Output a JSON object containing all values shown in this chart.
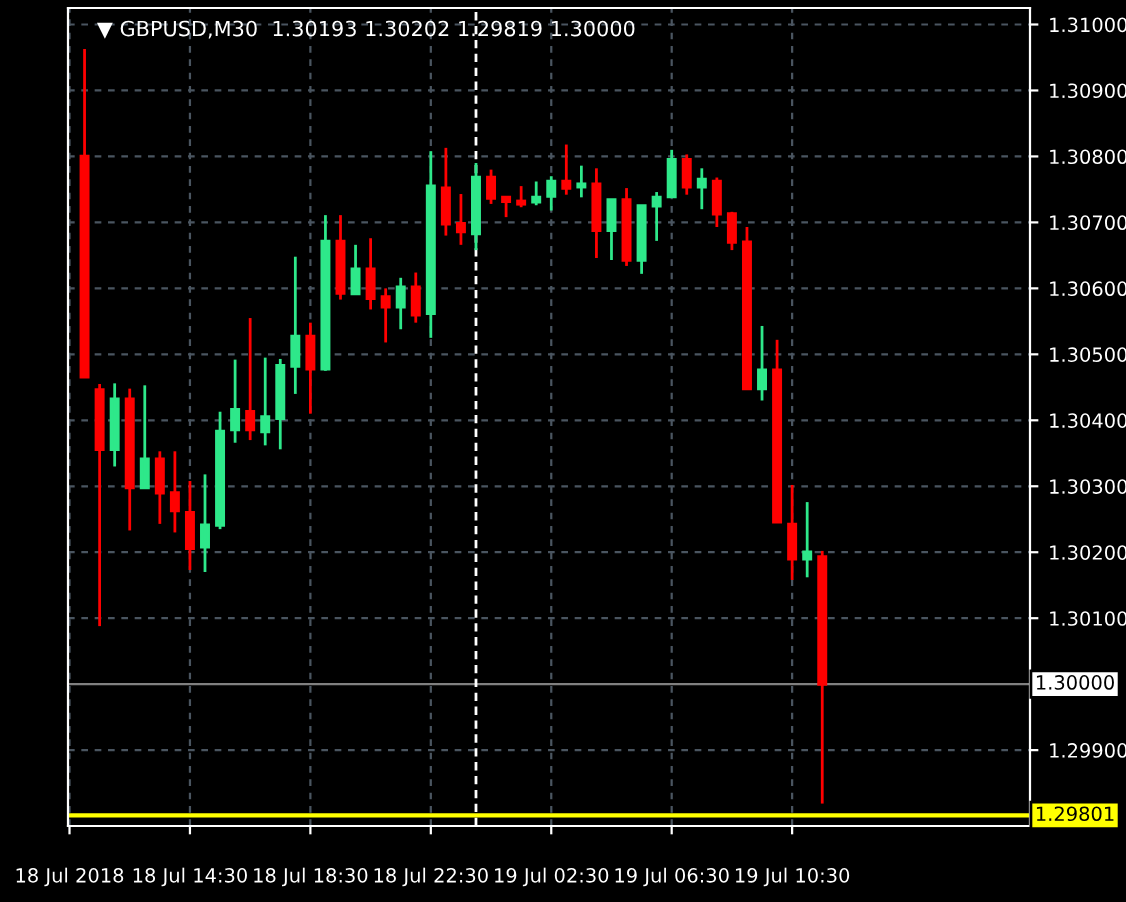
{
  "chart_data": {
    "type": "candlestick",
    "title": "▼ GBPUSD,M30  1.30193 1.30202 1.29819 1.30000",
    "x": [
      "2018-07-18T11:00",
      "2018-07-18T11:30",
      "2018-07-18T12:00",
      "2018-07-18T12:30",
      "2018-07-18T13:00",
      "2018-07-18T13:30",
      "2018-07-18T14:00",
      "2018-07-18T14:30",
      "2018-07-18T15:00",
      "2018-07-18T15:30",
      "2018-07-18T16:00",
      "2018-07-18T16:30",
      "2018-07-18T17:00",
      "2018-07-18T17:30",
      "2018-07-18T18:00",
      "2018-07-18T18:30",
      "2018-07-18T19:00",
      "2018-07-18T19:30",
      "2018-07-18T20:00",
      "2018-07-18T20:30",
      "2018-07-18T21:00",
      "2018-07-18T21:30",
      "2018-07-18T22:00",
      "2018-07-18T22:30",
      "2018-07-18T23:00",
      "2018-07-18T23:30",
      "2018-07-19T00:00",
      "2018-07-19T00:30",
      "2018-07-19T01:00",
      "2018-07-19T01:30",
      "2018-07-19T02:00",
      "2018-07-19T02:30",
      "2018-07-19T03:00",
      "2018-07-19T03:30",
      "2018-07-19T04:00",
      "2018-07-19T04:30",
      "2018-07-19T05:00",
      "2018-07-19T05:30",
      "2018-07-19T06:00",
      "2018-07-19T06:30",
      "2018-07-19T07:00",
      "2018-07-19T07:30",
      "2018-07-19T08:00",
      "2018-07-19T08:30",
      "2018-07-19T09:00",
      "2018-07-19T09:30",
      "2018-07-19T10:00",
      "2018-07-19T10:30",
      "2018-07-19T11:00",
      "2018-07-19T11:30"
    ],
    "ohlc": [
      [
        1.308,
        1.30963,
        1.30466,
        1.30466
      ],
      [
        1.30446,
        1.30455,
        1.30088,
        1.30356
      ],
      [
        1.30356,
        1.30456,
        1.3033,
        1.30432
      ],
      [
        1.30432,
        1.30448,
        1.30233,
        1.30298
      ],
      [
        1.30298,
        1.30453,
        1.30296,
        1.30341
      ],
      [
        1.30341,
        1.30353,
        1.30243,
        1.3029
      ],
      [
        1.3029,
        1.30353,
        1.3023,
        1.30263
      ],
      [
        1.3026,
        1.30308,
        1.30173,
        1.30206
      ],
      [
        1.30208,
        1.30318,
        1.3017,
        1.30241
      ],
      [
        1.30241,
        1.30413,
        1.30235,
        1.30383
      ],
      [
        1.30386,
        1.30492,
        1.30366,
        1.30416
      ],
      [
        1.30413,
        1.30555,
        1.3037,
        1.30386
      ],
      [
        1.30383,
        1.30495,
        1.30362,
        1.30405
      ],
      [
        1.30403,
        1.30493,
        1.30356,
        1.30483
      ],
      [
        1.30482,
        1.30648,
        1.3044,
        1.30527
      ],
      [
        1.30527,
        1.30548,
        1.3041,
        1.30478
      ],
      [
        1.30478,
        1.30711,
        1.30475,
        1.30671
      ],
      [
        1.30671,
        1.30711,
        1.30583,
        1.30593
      ],
      [
        1.30592,
        1.30666,
        1.3059,
        1.30629
      ],
      [
        1.30629,
        1.30676,
        1.30568,
        1.30585
      ],
      [
        1.30587,
        1.306,
        1.30518,
        1.30572
      ],
      [
        1.30572,
        1.30616,
        1.30538,
        1.30602
      ],
      [
        1.30602,
        1.30624,
        1.30548,
        1.3056
      ],
      [
        1.30562,
        1.30808,
        1.30525,
        1.30755
      ],
      [
        1.30752,
        1.30813,
        1.3068,
        1.30698
      ],
      [
        1.30698,
        1.30743,
        1.30666,
        1.30686
      ],
      [
        1.30683,
        1.3079,
        1.30658,
        1.30768
      ],
      [
        1.30768,
        1.3078,
        1.30728,
        1.30737
      ],
      [
        1.30738,
        1.30738,
        1.30708,
        1.30732
      ],
      [
        1.30732,
        1.30755,
        1.30723,
        1.30728
      ],
      [
        1.30731,
        1.30762,
        1.30726,
        1.30738
      ],
      [
        1.3074,
        1.3077,
        1.30718,
        1.30762
      ],
      [
        1.30762,
        1.30818,
        1.30742,
        1.30752
      ],
      [
        1.30754,
        1.30786,
        1.30738,
        1.30758
      ],
      [
        1.30758,
        1.30782,
        1.30646,
        1.30688
      ],
      [
        1.30688,
        1.30734,
        1.30643,
        1.30734
      ],
      [
        1.30734,
        1.30752,
        1.30634,
        1.30643
      ],
      [
        1.30643,
        1.30725,
        1.30622,
        1.30725
      ],
      [
        1.30725,
        1.30746,
        1.30672,
        1.30738
      ],
      [
        1.30739,
        1.3081,
        1.30738,
        1.30795
      ],
      [
        1.30795,
        1.30803,
        1.30742,
        1.30754
      ],
      [
        1.30754,
        1.30782,
        1.3072,
        1.30765
      ],
      [
        1.30762,
        1.30768,
        1.30693,
        1.30713
      ],
      [
        1.30713,
        1.30716,
        1.30658,
        1.3067
      ],
      [
        1.3067,
        1.30693,
        1.30448,
        1.30448
      ],
      [
        1.30448,
        1.30543,
        1.3043,
        1.30476
      ],
      [
        1.30476,
        1.30522,
        1.30246,
        1.30246
      ],
      [
        1.30242,
        1.30302,
        1.30158,
        1.3019
      ],
      [
        1.3019,
        1.30276,
        1.30162,
        1.302
      ],
      [
        1.30193,
        1.30202,
        1.29819,
        1.3
      ]
    ],
    "colors": [
      "#ff0000",
      "#ff0000",
      "#2ee88a",
      "#ff0000",
      "#2ee88a",
      "#ff0000",
      "#ff0000",
      "#ff0000",
      "#2ee88a",
      "#2ee88a",
      "#2ee88a",
      "#ff0000",
      "#2ee88a",
      "#2ee88a",
      "#2ee88a",
      "#ff0000",
      "#2ee88a",
      "#ff0000",
      "#2ee88a",
      "#ff0000",
      "#ff0000",
      "#2ee88a",
      "#ff0000",
      "#2ee88a",
      "#ff0000",
      "#ff0000",
      "#2ee88a",
      "#ff0000",
      "#ff0000",
      "#ff0000",
      "#2ee88a",
      "#2ee88a",
      "#ff0000",
      "#2ee88a",
      "#ff0000",
      "#2ee88a",
      "#ff0000",
      "#2ee88a",
      "#2ee88a",
      "#2ee88a",
      "#ff0000",
      "#2ee88a",
      "#ff0000",
      "#ff0000",
      "#ff0000",
      "#2ee88a",
      "#ff0000",
      "#ff0000",
      "#2ee88a",
      "#ff0000"
    ],
    "xlim": [
      "2018-07-18T10:27",
      "2018-07-19T18:24"
    ],
    "xticks": [
      {
        "value": "2018-07-18T10:30",
        "label": "18 Jul 2018"
      },
      {
        "value": "2018-07-18T14:30",
        "label": "18 Jul 14:30"
      },
      {
        "value": "2018-07-18T18:30",
        "label": "18 Jul 18:30"
      },
      {
        "value": "2018-07-18T22:30",
        "label": "18 Jul 22:30"
      },
      {
        "value": "2018-07-19T02:30",
        "label": "19 Jul 02:30"
      },
      {
        "value": "2018-07-19T06:30",
        "label": "19 Jul 06:30"
      },
      {
        "value": "2018-07-19T10:30",
        "label": "19 Jul 10:30"
      }
    ],
    "ylim": [
      1.29785,
      1.31025
    ],
    "yticks": [
      {
        "value": 1.299,
        "label": "1.29900"
      },
      {
        "value": 1.301,
        "label": "1.30100"
      },
      {
        "value": 1.302,
        "label": "1.30200"
      },
      {
        "value": 1.303,
        "label": "1.30300"
      },
      {
        "value": 1.304,
        "label": "1.30400"
      },
      {
        "value": 1.305,
        "label": "1.30500"
      },
      {
        "value": 1.306,
        "label": "1.30600"
      },
      {
        "value": 1.307,
        "label": "1.30700"
      },
      {
        "value": 1.308,
        "label": "1.30800"
      },
      {
        "value": 1.309,
        "label": "1.30900"
      },
      {
        "value": 1.31,
        "label": "1.31000"
      }
    ],
    "ref_lines": [
      {
        "axis": "y",
        "value": 1.3,
        "label": "1.30000",
        "color": "#808080",
        "line_style": "solid"
      },
      {
        "axis": "y",
        "value": 1.29801,
        "label": "1.29801",
        "color": "#ffff00",
        "line_style": "solid"
      },
      {
        "axis": "x",
        "value": "2018-07-19T00:00",
        "label": null,
        "color": "#ffffff",
        "line_style": "dashed"
      }
    ],
    "grid": true
  }
}
